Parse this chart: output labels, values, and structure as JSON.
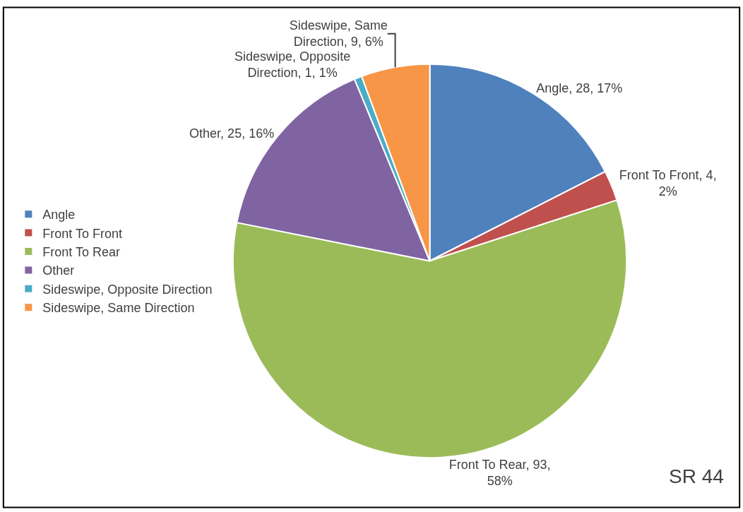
{
  "chart_data": {
    "type": "pie",
    "categories": [
      "Angle",
      "Front To Front",
      "Front To Rear",
      "Other",
      "Sideswipe, Opposite Direction",
      "Sideswipe, Same Direction"
    ],
    "values": [
      28,
      4,
      93,
      25,
      1,
      9
    ],
    "colors": [
      "#4f81bd",
      "#c0504d",
      "#9bbb59",
      "#8064a2",
      "#4bacc6",
      "#f79646"
    ],
    "value_labels": [
      "Angle, 28, 17%",
      "Front To Front, 4, 2%",
      "Front To Rear, 93, 58%",
      "Other, 25, 16%",
      "Sideswipe, Opposite Direction, 1, 1%",
      "Sideswipe, Same Direction, 9, 6%"
    ],
    "legend": "left",
    "annotations": [
      "SR 44"
    ]
  }
}
